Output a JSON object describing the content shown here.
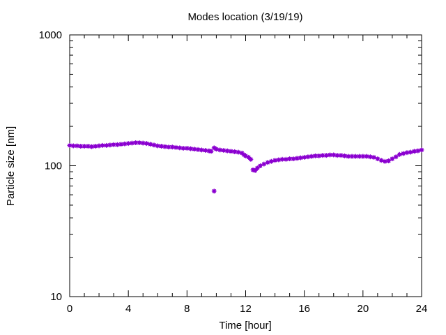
{
  "chart_data": {
    "type": "scatter",
    "title": "Modes location (3/19/19)",
    "xlabel": "Time [hour]",
    "ylabel": "Particle size [nm]",
    "xlim": [
      0,
      24
    ],
    "ylim": [
      10,
      1000
    ],
    "yscale": "log",
    "grid": false,
    "x_ticks": [
      0,
      4,
      8,
      12,
      16,
      20,
      24
    ],
    "y_ticks": [
      10,
      100,
      1000
    ],
    "x_tick_labels": [
      "0",
      "4",
      "8",
      "12",
      "16",
      "20",
      "24"
    ],
    "y_tick_labels": [
      "10",
      "100",
      "1000"
    ],
    "marker_color": "#8b00d0",
    "series": [
      {
        "values_xy": [
          [
            0.0,
            143
          ],
          [
            0.25,
            142
          ],
          [
            0.5,
            142
          ],
          [
            0.75,
            141
          ],
          [
            1.0,
            141
          ],
          [
            1.25,
            141
          ],
          [
            1.5,
            140
          ],
          [
            1.75,
            141
          ],
          [
            2.0,
            142
          ],
          [
            2.25,
            143
          ],
          [
            2.5,
            143
          ],
          [
            2.75,
            144
          ],
          [
            3.0,
            145
          ],
          [
            3.25,
            145
          ],
          [
            3.5,
            146
          ],
          [
            3.75,
            147
          ],
          [
            4.0,
            148
          ],
          [
            4.25,
            149
          ],
          [
            4.5,
            150
          ],
          [
            4.75,
            150
          ],
          [
            5.0,
            149
          ],
          [
            5.25,
            148
          ],
          [
            5.5,
            146
          ],
          [
            5.75,
            144
          ],
          [
            6.0,
            142
          ],
          [
            6.25,
            141
          ],
          [
            6.5,
            140
          ],
          [
            6.75,
            139
          ],
          [
            7.0,
            139
          ],
          [
            7.25,
            138
          ],
          [
            7.5,
            137
          ],
          [
            7.75,
            136
          ],
          [
            8.0,
            136
          ],
          [
            8.25,
            135
          ],
          [
            8.5,
            134
          ],
          [
            8.75,
            133
          ],
          [
            9.0,
            132
          ],
          [
            9.25,
            131
          ],
          [
            9.5,
            130
          ],
          [
            9.65,
            129
          ],
          [
            9.85,
            137
          ],
          [
            10.0,
            134
          ],
          [
            10.25,
            132
          ],
          [
            10.5,
            131
          ],
          [
            10.75,
            130
          ],
          [
            11.0,
            129
          ],
          [
            11.25,
            128
          ],
          [
            11.5,
            127
          ],
          [
            11.75,
            125
          ],
          [
            11.9,
            121
          ],
          [
            12.0,
            119
          ],
          [
            12.2,
            116
          ],
          [
            12.35,
            112
          ],
          [
            12.5,
            93
          ],
          [
            12.65,
            92
          ],
          [
            12.8,
            96
          ],
          [
            13.0,
            100
          ],
          [
            13.25,
            103
          ],
          [
            13.5,
            106
          ],
          [
            13.75,
            108
          ],
          [
            14.0,
            110
          ],
          [
            14.25,
            111
          ],
          [
            14.5,
            112
          ],
          [
            14.75,
            112
          ],
          [
            15.0,
            113
          ],
          [
            15.25,
            113
          ],
          [
            15.5,
            114
          ],
          [
            15.75,
            115
          ],
          [
            16.0,
            116
          ],
          [
            16.25,
            117
          ],
          [
            16.5,
            118
          ],
          [
            16.75,
            119
          ],
          [
            17.0,
            119
          ],
          [
            17.25,
            120
          ],
          [
            17.5,
            120
          ],
          [
            17.75,
            121
          ],
          [
            18.0,
            121
          ],
          [
            18.25,
            120
          ],
          [
            18.5,
            120
          ],
          [
            18.75,
            119
          ],
          [
            19.0,
            118
          ],
          [
            19.25,
            118
          ],
          [
            19.5,
            118
          ],
          [
            19.75,
            118
          ],
          [
            20.0,
            118
          ],
          [
            20.25,
            118
          ],
          [
            20.5,
            117
          ],
          [
            20.75,
            116
          ],
          [
            21.0,
            113
          ],
          [
            21.25,
            110
          ],
          [
            21.5,
            108
          ],
          [
            21.75,
            109
          ],
          [
            22.0,
            113
          ],
          [
            22.25,
            117
          ],
          [
            22.5,
            122
          ],
          [
            22.75,
            124
          ],
          [
            23.0,
            126
          ],
          [
            23.25,
            127
          ],
          [
            23.5,
            129
          ],
          [
            23.75,
            130
          ],
          [
            24.0,
            132
          ],
          [
            9.85,
            64
          ]
        ]
      }
    ]
  }
}
